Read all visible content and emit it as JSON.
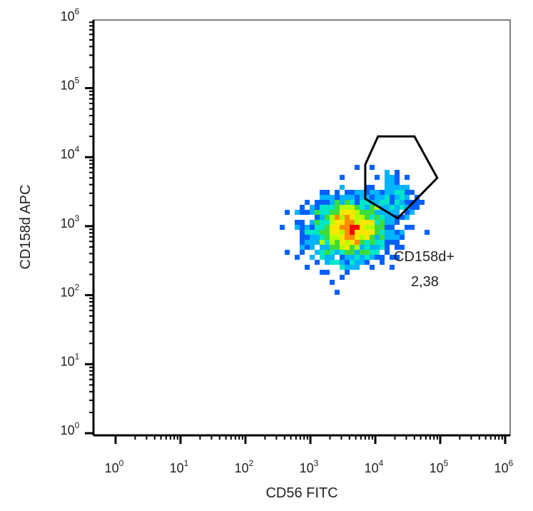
{
  "chart_data": {
    "type": "scatter",
    "plot_style": "flow-cytometry density dot plot",
    "x_axis": {
      "label": "CD56 FITC",
      "scale": "log",
      "range": [
        1,
        1000000
      ],
      "ticks": [
        {
          "base": "10",
          "exp": "0"
        },
        {
          "base": "10",
          "exp": "1"
        },
        {
          "base": "10",
          "exp": "2"
        },
        {
          "base": "10",
          "exp": "3"
        },
        {
          "base": "10",
          "exp": "4"
        },
        {
          "base": "10",
          "exp": "5"
        },
        {
          "base": "10",
          "exp": "6"
        }
      ]
    },
    "y_axis": {
      "label": "CD158d APC",
      "scale": "log",
      "range": [
        1,
        1000000
      ],
      "ticks": [
        {
          "base": "10",
          "exp": "0"
        },
        {
          "base": "10",
          "exp": "1"
        },
        {
          "base": "10",
          "exp": "2"
        },
        {
          "base": "10",
          "exp": "3"
        },
        {
          "base": "10",
          "exp": "4"
        },
        {
          "base": "10",
          "exp": "5"
        },
        {
          "base": "10",
          "exp": "6"
        }
      ]
    },
    "populations": [
      {
        "center": [
          4000,
          900
        ],
        "spread_decades": [
          0.28,
          0.22
        ],
        "count": 1700
      },
      {
        "center": [
          20000,
          2500
        ],
        "spread_decades": [
          0.18,
          0.22
        ],
        "count": 140
      }
    ],
    "colormap": [
      "#0000e0",
      "#0060ff",
      "#00b4ff",
      "#00e6c8",
      "#3cdc3c",
      "#b4ff00",
      "#ffe600",
      "#ff8c00",
      "#ff0000"
    ],
    "gate": {
      "name": "CD158d+",
      "value": "2,38",
      "vertices": [
        [
          7000,
          7800
        ],
        [
          11000,
          20000
        ],
        [
          40000,
          20000
        ],
        [
          90000,
          5000
        ],
        [
          22000,
          1300
        ],
        [
          7000,
          2500
        ]
      ]
    },
    "grid": false
  }
}
